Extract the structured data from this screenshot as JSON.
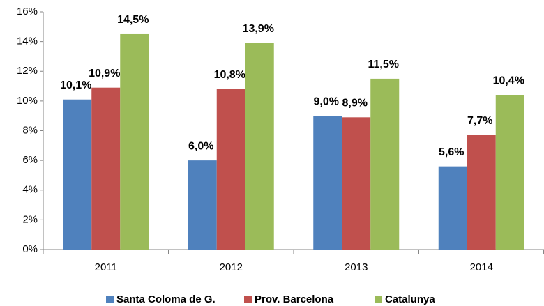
{
  "chart_data": {
    "type": "bar",
    "categories": [
      "2011",
      "2012",
      "2013",
      "2014"
    ],
    "series": [
      {
        "name": "Santa Coloma de G.",
        "color": "#4f81bd",
        "values": [
          10.1,
          6.0,
          9.0,
          5.6
        ],
        "value_labels": [
          "10,1%",
          "6,0%",
          "9,0%",
          "5,6%"
        ]
      },
      {
        "name": "Prov. Barcelona",
        "color": "#c0504d",
        "values": [
          10.9,
          10.8,
          8.9,
          7.7
        ],
        "value_labels": [
          "10,9%",
          "10,8%",
          "8,9%",
          "7,7%"
        ]
      },
      {
        "name": "Catalunya",
        "color": "#9bbb59",
        "values": [
          14.5,
          13.9,
          11.5,
          10.4
        ],
        "value_labels": [
          "14,5%",
          "13,9%",
          "11,5%",
          "10,4%"
        ]
      }
    ],
    "ylim": [
      0,
      16
    ],
    "yticks": [
      {
        "value": 0,
        "label": "0%"
      },
      {
        "value": 2,
        "label": "2%"
      },
      {
        "value": 4,
        "label": "4%"
      },
      {
        "value": 6,
        "label": "6%"
      },
      {
        "value": 8,
        "label": "8%"
      },
      {
        "value": 10,
        "label": "10%"
      },
      {
        "value": 12,
        "label": "12%"
      },
      {
        "value": 14,
        "label": "14%"
      },
      {
        "value": 16,
        "label": "16%"
      }
    ],
    "legend": "bottom"
  }
}
